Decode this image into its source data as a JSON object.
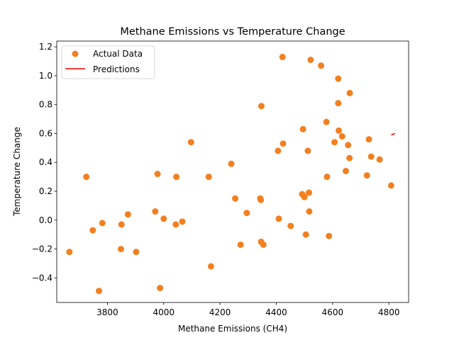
{
  "chart_data": {
    "type": "scatter",
    "title": "Methane Emissions vs Temperature Change",
    "xlabel": "Methane Emissions (CH4)",
    "ylabel": "Temperature Change",
    "xlim": [
      3620,
      4870
    ],
    "ylim": [
      -0.57,
      1.24
    ],
    "xticks": [
      3800,
      4000,
      4200,
      4400,
      4600,
      4800
    ],
    "xtick_labels": [
      "3800",
      "4000",
      "4200",
      "4400",
      "4600",
      "4800"
    ],
    "yticks": [
      -0.4,
      -0.2,
      0.0,
      0.2,
      0.4,
      0.6,
      0.8,
      1.0,
      1.2
    ],
    "ytick_labels": [
      "−0.4",
      "−0.2",
      "0.0",
      "0.2",
      "0.4",
      "0.6",
      "0.8",
      "1.0",
      "1.2"
    ],
    "grid": false,
    "legend_position": "top-left",
    "series": [
      {
        "name": "Actual Data",
        "kind": "scatter",
        "color": "#f28020",
        "points": [
          [
            3665,
            -0.22
          ],
          [
            3725,
            0.3
          ],
          [
            3748,
            -0.07
          ],
          [
            3770,
            -0.49
          ],
          [
            3782,
            -0.02
          ],
          [
            3848,
            -0.2
          ],
          [
            3850,
            -0.03
          ],
          [
            3873,
            0.04
          ],
          [
            3902,
            -0.22
          ],
          [
            3970,
            0.06
          ],
          [
            3978,
            0.32
          ],
          [
            3987,
            -0.47
          ],
          [
            4000,
            0.01
          ],
          [
            4043,
            -0.03
          ],
          [
            4045,
            0.3
          ],
          [
            4066,
            -0.01
          ],
          [
            4097,
            0.54
          ],
          [
            4160,
            0.3
          ],
          [
            4168,
            -0.32
          ],
          [
            4240,
            0.39
          ],
          [
            4254,
            0.15
          ],
          [
            4273,
            -0.17
          ],
          [
            4295,
            0.05
          ],
          [
            4343,
            0.15
          ],
          [
            4345,
            0.14
          ],
          [
            4346,
            -0.15
          ],
          [
            4347,
            0.79
          ],
          [
            4354,
            -0.17
          ],
          [
            4406,
            0.48
          ],
          [
            4409,
            0.01
          ],
          [
            4422,
            1.13
          ],
          [
            4424,
            0.53
          ],
          [
            4451,
            -0.04
          ],
          [
            4492,
            0.18
          ],
          [
            4495,
            0.63
          ],
          [
            4500,
            0.16
          ],
          [
            4505,
            -0.1
          ],
          [
            4512,
            0.48
          ],
          [
            4516,
            0.19
          ],
          [
            4517,
            0.06
          ],
          [
            4522,
            1.11
          ],
          [
            4559,
            1.07
          ],
          [
            4578,
            0.68
          ],
          [
            4580,
            0.3
          ],
          [
            4587,
            -0.11
          ],
          [
            4607,
            0.54
          ],
          [
            4620,
            0.98
          ],
          [
            4620,
            0.81
          ],
          [
            4622,
            0.62
          ],
          [
            4634,
            0.58
          ],
          [
            4647,
            0.34
          ],
          [
            4655,
            0.52
          ],
          [
            4660,
            0.43
          ],
          [
            4661,
            0.88
          ],
          [
            4722,
            0.31
          ],
          [
            4729,
            0.56
          ],
          [
            4737,
            0.44
          ],
          [
            4767,
            0.42
          ],
          [
            4808,
            0.24
          ]
        ]
      },
      {
        "name": "Predictions",
        "kind": "line",
        "color": "#ff0000",
        "points": [
          [
            4808,
            0.59
          ],
          [
            4822,
            0.6
          ]
        ]
      }
    ]
  }
}
